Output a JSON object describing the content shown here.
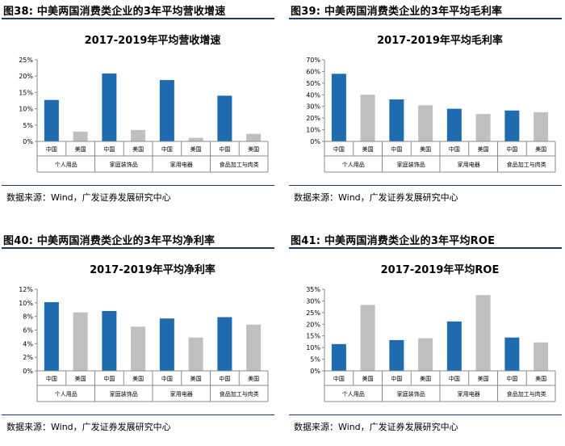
{
  "colors": {
    "china": "#1f6bb0",
    "usa": "#bfbfbf",
    "rule": "#1f3864"
  },
  "panels": [
    {
      "figure_title": "图38:  中美两国消费类企业的3年平均营收增速",
      "source": "数据来源：Wind，广发证券发展研究中心",
      "chart_data": {
        "type": "bar",
        "title": "2017-2019年平均营收增速",
        "categories": [
          "中国",
          "美国",
          "中国",
          "美国",
          "中国",
          "美国",
          "中国",
          "美国"
        ],
        "groups": [
          "个人用品",
          "家庭装饰品",
          "家用电器",
          "食品加工与肉类"
        ],
        "values": [
          12.7,
          3.0,
          20.8,
          3.5,
          18.8,
          1.1,
          14.0,
          2.3
        ],
        "series_colors": [
          "china",
          "usa",
          "china",
          "usa",
          "china",
          "usa",
          "china",
          "usa"
        ],
        "ylim": [
          0,
          25
        ],
        "yticks": [
          "0%",
          "5%",
          "10%",
          "15%",
          "20%",
          "25%"
        ]
      }
    },
    {
      "figure_title": "图39:  中美两国消费类企业的3年平均毛利率",
      "source": "数据来源：Wind，广发证券发展研究中心",
      "chart_data": {
        "type": "bar",
        "title": "2017-2019年平均毛利率",
        "categories": [
          "中国",
          "美国",
          "中国",
          "美国",
          "中国",
          "美国",
          "中国",
          "美国"
        ],
        "groups": [
          "个人用品",
          "家庭装饰品",
          "家用电器",
          "食品加工与肉类"
        ],
        "values": [
          58,
          40,
          36,
          31,
          28,
          23.5,
          26.5,
          25
        ],
        "series_colors": [
          "china",
          "usa",
          "china",
          "usa",
          "china",
          "usa",
          "china",
          "usa"
        ],
        "ylim": [
          0,
          70
        ],
        "yticks": [
          "0%",
          "10%",
          "20%",
          "30%",
          "40%",
          "50%",
          "60%",
          "70%"
        ]
      }
    },
    {
      "figure_title": "图40:  中美两国消费类企业的3年平均净利率",
      "source": "数据来源：Wind，广发证券发展研究中心",
      "chart_data": {
        "type": "bar",
        "title": "2017-2019年平均净利率",
        "categories": [
          "中国",
          "美国",
          "中国",
          "美国",
          "中国",
          "美国",
          "中国",
          "美国"
        ],
        "groups": [
          "个人用品",
          "家庭装饰品",
          "家用电器",
          "食品加工与肉类"
        ],
        "values": [
          10.1,
          8.6,
          8.8,
          6.5,
          7.7,
          4.9,
          7.9,
          6.8
        ],
        "series_colors": [
          "china",
          "usa",
          "china",
          "usa",
          "china",
          "usa",
          "china",
          "usa"
        ],
        "ylim": [
          0,
          12
        ],
        "yticks": [
          "0%",
          "2%",
          "4%",
          "6%",
          "8%",
          "10%",
          "12%"
        ]
      }
    },
    {
      "figure_title": "图41:  中美两国消费类企业的3年平均ROE",
      "source": "数据来源：Wind，广发证券发展研究中心",
      "chart_data": {
        "type": "bar",
        "title": "2017-2019年平均ROE",
        "categories": [
          "中国",
          "美国",
          "中国",
          "美国",
          "中国",
          "美国",
          "中国",
          "美国"
        ],
        "groups": [
          "个人用品",
          "家庭装饰品",
          "家用电器",
          "食品加工与肉类"
        ],
        "values": [
          11.5,
          28.3,
          13.2,
          14.0,
          21.2,
          32.5,
          14.3,
          12.2
        ],
        "series_colors": [
          "china",
          "usa",
          "china",
          "usa",
          "china",
          "usa",
          "china",
          "usa"
        ],
        "ylim": [
          0,
          35
        ],
        "yticks": [
          "0%",
          "5%",
          "10%",
          "15%",
          "20%",
          "25%",
          "30%",
          "35%"
        ]
      }
    }
  ]
}
